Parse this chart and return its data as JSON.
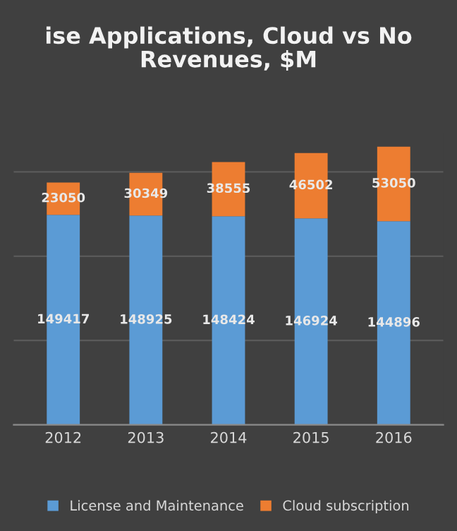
{
  "chart_data": {
    "type": "bar",
    "title": "ise Applications, Cloud vs No\nRevenues, $M",
    "categories": [
      "2012",
      "2013",
      "2014",
      "2015",
      "2016"
    ],
    "series": [
      {
        "name": "License and Maintenance",
        "color": "#5b9bd5",
        "values": [
          149417,
          148925,
          148424,
          146924,
          144896
        ]
      },
      {
        "name": "Cloud subscription",
        "color": "#ed7d31",
        "values": [
          23050,
          30349,
          38555,
          46502,
          53050
        ]
      }
    ],
    "stacked": true,
    "data_labels": true,
    "grid": "y",
    "legend": "bottom",
    "tick_labels": "x"
  }
}
